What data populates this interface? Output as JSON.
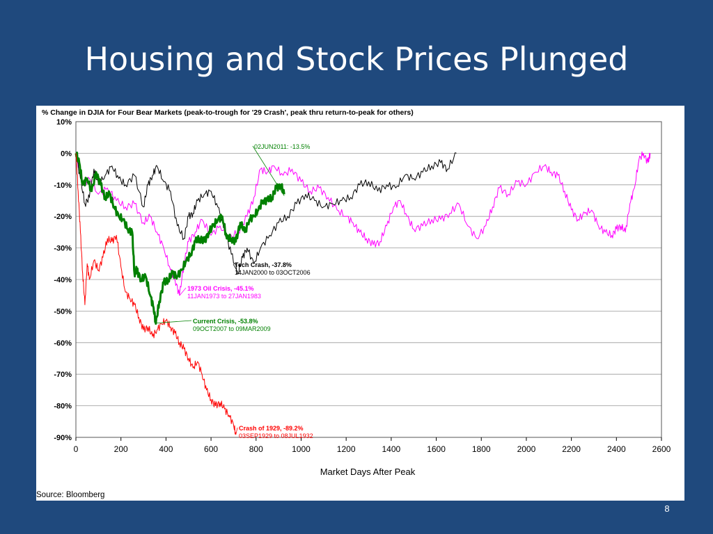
{
  "slide": {
    "title": "Housing and Stock Prices Plunged",
    "page_number": "8"
  },
  "chart_data": {
    "type": "line",
    "title": "% Change in DJIA for Four Bear Markets (peak-to-trough for '29 Crash', peak thru return-to-peak for others)",
    "xlabel": "Market Days After Peak",
    "ylabel": "",
    "source": "Source:  Bloomberg",
    "xlim": [
      0,
      2600
    ],
    "ylim": [
      -90,
      10
    ],
    "x_ticks": [
      0,
      200,
      400,
      600,
      800,
      1000,
      1200,
      1400,
      1600,
      1800,
      2000,
      2200,
      2400,
      2600
    ],
    "x_tick_labels": [
      "0",
      "200",
      "400",
      "600",
      "800",
      "1000",
      "1200",
      "1400",
      "1600",
      "1800",
      "2000",
      "2200",
      "2400",
      "2600"
    ],
    "y_ticks": [
      10,
      0,
      -10,
      -20,
      -30,
      -40,
      -50,
      -60,
      -70,
      -80,
      -90
    ],
    "y_tick_labels": [
      "10%",
      "0%",
      "-10%",
      "-20%",
      "-30%",
      "-40%",
      "-50%",
      "-60%",
      "-70%",
      "-80%",
      "-90%"
    ],
    "grid": "horizontal",
    "series": [
      {
        "name": "1973 Oil Crisis",
        "color": "#ff00ff",
        "x": [
          0,
          30,
          60,
          100,
          140,
          180,
          220,
          260,
          300,
          330,
          360,
          390,
          420,
          440,
          460,
          480,
          500,
          530,
          560,
          600,
          640,
          680,
          720,
          760,
          790,
          820,
          850,
          880,
          920,
          960,
          1000,
          1040,
          1080,
          1120,
          1160,
          1200,
          1230,
          1260,
          1290,
          1320,
          1350,
          1380,
          1410,
          1440,
          1470,
          1500,
          1540,
          1580,
          1620,
          1660,
          1700,
          1740,
          1780,
          1820,
          1850,
          1880,
          1920,
          1960,
          2000,
          2040,
          2080,
          2110,
          2140,
          2170,
          2200,
          2230,
          2260,
          2290,
          2320,
          2350,
          2380,
          2400,
          2420,
          2440,
          2460,
          2480,
          2500,
          2520,
          2540,
          2550
        ],
        "y": [
          0,
          -10,
          -8,
          -13,
          -11,
          -15,
          -17,
          -16,
          -22,
          -20,
          -25,
          -30,
          -37,
          -40,
          -45,
          -35,
          -28,
          -25,
          -21,
          -26,
          -23,
          -27,
          -25,
          -20,
          -14,
          -5,
          -6,
          -4,
          -7,
          -5,
          -9,
          -12,
          -11,
          -14,
          -18,
          -20,
          -22,
          -25,
          -27,
          -29,
          -28,
          -23,
          -17,
          -15,
          -20,
          -24,
          -23,
          -21,
          -21,
          -19,
          -16,
          -23,
          -27,
          -23,
          -17,
          -11,
          -13,
          -9,
          -10,
          -6,
          -4,
          -6,
          -7,
          -12,
          -18,
          -21,
          -19,
          -18,
          -23,
          -25,
          -26,
          -24,
          -23,
          -25,
          -16,
          -11,
          -2,
          0,
          -3,
          0
        ]
      },
      {
        "name": "Tech Crash",
        "color": "#000000",
        "x": [
          0,
          20,
          40,
          60,
          80,
          100,
          130,
          160,
          190,
          220,
          260,
          300,
          320,
          340,
          360,
          390,
          420,
          450,
          480,
          500,
          520,
          540,
          570,
          600,
          630,
          660,
          690,
          720,
          740,
          760,
          790,
          820,
          860,
          900,
          940,
          980,
          1020,
          1060,
          1100,
          1140,
          1180,
          1220,
          1260,
          1300,
          1340,
          1380,
          1420,
          1460,
          1500,
          1540,
          1580,
          1620,
          1650,
          1690
        ],
        "y": [
          0,
          -8,
          -16,
          -14,
          -5,
          -10,
          -7,
          -4,
          -8,
          -10,
          -7,
          -17,
          -10,
          -7,
          -4,
          -9,
          -12,
          -23,
          -27,
          -20,
          -19,
          -15,
          -13,
          -12,
          -17,
          -24,
          -32,
          -38,
          -33,
          -30,
          -35,
          -30,
          -26,
          -22,
          -20,
          -16,
          -13,
          -15,
          -17,
          -16,
          -15,
          -14,
          -10,
          -9,
          -12,
          -10,
          -11,
          -7,
          -8,
          -6,
          -4,
          -3,
          -5,
          0
        ]
      },
      {
        "name": "Current Crisis",
        "color": "#008000",
        "x": [
          0,
          15,
          30,
          50,
          70,
          90,
          110,
          130,
          150,
          170,
          190,
          210,
          230,
          250,
          260,
          270,
          290,
          310,
          330,
          345,
          355,
          370,
          390,
          410,
          430,
          450,
          470,
          490,
          510,
          530,
          550,
          570,
          590,
          610,
          630,
          650,
          670,
          690,
          710,
          730,
          750,
          770,
          790,
          810,
          830,
          850,
          870,
          890,
          910,
          925
        ],
        "y": [
          0,
          -3,
          -10,
          -8,
          -12,
          -6,
          -10,
          -14,
          -13,
          -17,
          -20,
          -21,
          -24,
          -25,
          -38,
          -37,
          -40,
          -39,
          -45,
          -49,
          -54,
          -47,
          -41,
          -40,
          -38,
          -39,
          -37,
          -34,
          -32,
          -28,
          -27,
          -28,
          -25,
          -23,
          -21,
          -20,
          -27,
          -27,
          -28,
          -22,
          -25,
          -21,
          -20,
          -18,
          -15,
          -15,
          -14,
          -11,
          -10,
          -13
        ]
      },
      {
        "name": "Crash of 1929",
        "color": "#ff0000",
        "x": [
          0,
          10,
          20,
          30,
          40,
          50,
          60,
          80,
          100,
          120,
          140,
          160,
          180,
          200,
          220,
          240,
          260,
          280,
          300,
          320,
          340,
          360,
          380,
          400,
          420,
          440,
          460,
          480,
          500,
          520,
          540,
          560,
          580,
          600,
          620,
          640,
          660,
          680,
          700,
          710
        ],
        "y": [
          0,
          -12,
          -25,
          -38,
          -48,
          -35,
          -40,
          -34,
          -37,
          -33,
          -27,
          -28,
          -26,
          -36,
          -44,
          -46,
          -48,
          -52,
          -56,
          -55,
          -58,
          -56,
          -54,
          -53,
          -55,
          -57,
          -60,
          -62,
          -65,
          -68,
          -66,
          -70,
          -75,
          -78,
          -80,
          -79,
          -81,
          -83,
          -86,
          -89
        ]
      }
    ],
    "annotations": [
      {
        "series": "Current Crisis",
        "label": "02JUN2011: -13.5%",
        "sub": "",
        "x": 925,
        "y": -13.5
      },
      {
        "series": "Tech Crash",
        "label": "Tech Crash, -37.8%",
        "sub": "14JAN2000 to 03OCT2006",
        "x": 720,
        "y": -37.8
      },
      {
        "series": "1973 Oil Crisis",
        "label": "1973 Oil Crisis, -45.1%",
        "sub": "11JAN1973 to 27JAN1983",
        "x": 460,
        "y": -45.1
      },
      {
        "series": "Current Crisis",
        "label": "Current Crisis, -53.8%",
        "sub": "09OCT2007 to 09MAR2009",
        "x": 355,
        "y": -53.8
      },
      {
        "series": "Crash of 1929",
        "label": "Crash of 1929, -89.2%",
        "sub": "03SEP1929 to 08JUL1932",
        "x": 710,
        "y": -89.2
      }
    ]
  }
}
